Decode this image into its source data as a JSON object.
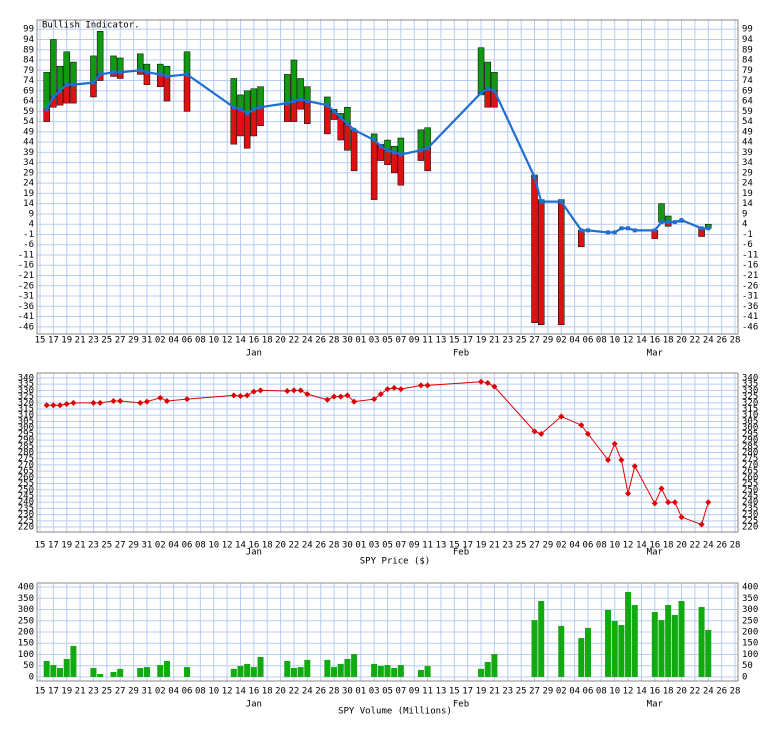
{
  "chart_data": [
    {
      "type": "rangebar",
      "title": "Bullish Indicator.",
      "x": [
        1,
        2,
        3,
        4,
        5,
        8,
        9,
        11,
        12,
        15,
        16,
        18,
        19,
        22,
        29,
        30,
        31,
        32,
        33,
        37,
        38,
        39,
        40,
        43,
        44,
        45,
        46,
        47,
        50,
        51,
        52,
        53,
        54,
        57,
        58,
        66,
        67,
        68,
        74,
        75,
        78,
        81,
        82,
        85,
        86,
        87,
        88,
        89,
        92,
        93,
        94,
        95,
        96,
        99,
        100
      ],
      "values": [
        60,
        66,
        69,
        72,
        72,
        73,
        77,
        78,
        78,
        79,
        78,
        77,
        76,
        77,
        61,
        60,
        58,
        60,
        61,
        63,
        64,
        65,
        64,
        62,
        59,
        56,
        53,
        50,
        45,
        42,
        40,
        39,
        38,
        40,
        41,
        68,
        70,
        69,
        27,
        15,
        15,
        1,
        1,
        0,
        0,
        2,
        2,
        1,
        1,
        5,
        5,
        5,
        6,
        2,
        2
      ],
      "highs": [
        78,
        94,
        81,
        88,
        83,
        86,
        98,
        86,
        85,
        87,
        82,
        82,
        81,
        88,
        75,
        67,
        69,
        70,
        71,
        77,
        84,
        75,
        71,
        66,
        60,
        58,
        61,
        50,
        48,
        43,
        45,
        42,
        46,
        50,
        51,
        90,
        83,
        78,
        28,
        16,
        16,
        1,
        1,
        0,
        0,
        2,
        2,
        1,
        1,
        14,
        8,
        5,
        6,
        2,
        4
      ],
      "lows": [
        54,
        61,
        62,
        63,
        63,
        66,
        74,
        76,
        75,
        77,
        72,
        71,
        64,
        59,
        43,
        47,
        41,
        47,
        52,
        54,
        54,
        60,
        53,
        48,
        55,
        45,
        40,
        30,
        16,
        35,
        33,
        29,
        23,
        35,
        30,
        67,
        61,
        61,
        -44,
        -45,
        -45,
        -7,
        1,
        0,
        0,
        2,
        2,
        1,
        -3,
        5,
        3,
        5,
        5,
        -2,
        2
      ],
      "line_color": "#1f6fd0",
      "up_color": "#119911",
      "down_color": "#dd1111",
      "xlim": [
        0,
        104
      ],
      "xticks": [
        {
          "value": 0,
          "label": "15"
        },
        {
          "value": 2,
          "label": "17"
        },
        {
          "value": 4,
          "label": "19"
        },
        {
          "value": 6,
          "label": "21"
        },
        {
          "value": 8,
          "label": "23"
        },
        {
          "value": 10,
          "label": "25"
        },
        {
          "value": 12,
          "label": "27"
        },
        {
          "value": 14,
          "label": "29"
        },
        {
          "value": 16,
          "label": "31"
        },
        {
          "value": 18,
          "label": "02"
        },
        {
          "value": 20,
          "label": "04"
        },
        {
          "value": 22,
          "label": "06"
        },
        {
          "value": 24,
          "label": "08"
        },
        {
          "value": 26,
          "label": "10"
        },
        {
          "value": 28,
          "label": "12"
        },
        {
          "value": 30,
          "label": "14"
        },
        {
          "value": 32,
          "label": "16"
        },
        {
          "value": 34,
          "label": "18"
        },
        {
          "value": 36,
          "label": "20"
        },
        {
          "value": 38,
          "label": "22"
        },
        {
          "value": 40,
          "label": "24"
        },
        {
          "value": 42,
          "label": "26"
        },
        {
          "value": 44,
          "label": "28"
        },
        {
          "value": 46,
          "label": "30"
        },
        {
          "value": 48,
          "label": "01"
        },
        {
          "value": 50,
          "label": "03"
        },
        {
          "value": 52,
          "label": "05"
        },
        {
          "value": 54,
          "label": "07"
        },
        {
          "value": 56,
          "label": "09"
        },
        {
          "value": 58,
          "label": "11"
        },
        {
          "value": 60,
          "label": "13"
        },
        {
          "value": 62,
          "label": "15"
        },
        {
          "value": 64,
          "label": "17"
        },
        {
          "value": 66,
          "label": "19"
        },
        {
          "value": 68,
          "label": "21"
        },
        {
          "value": 70,
          "label": "23"
        },
        {
          "value": 72,
          "label": "25"
        },
        {
          "value": 74,
          "label": "27"
        },
        {
          "value": 76,
          "label": "29"
        },
        {
          "value": 78,
          "label": "02"
        },
        {
          "value": 80,
          "label": "04"
        },
        {
          "value": 82,
          "label": "06"
        },
        {
          "value": 84,
          "label": "08"
        },
        {
          "value": 86,
          "label": "10"
        },
        {
          "value": 88,
          "label": "12"
        },
        {
          "value": 90,
          "label": "14"
        },
        {
          "value": 92,
          "label": "16"
        },
        {
          "value": 94,
          "label": "18"
        },
        {
          "value": 96,
          "label": "20"
        },
        {
          "value": 98,
          "label": "22"
        },
        {
          "value": 100,
          "label": "24"
        },
        {
          "value": 102,
          "label": "26"
        },
        {
          "value": 104,
          "label": "28"
        }
      ],
      "month_labels": [
        {
          "value": 32,
          "label": "Jan"
        },
        {
          "value": 63,
          "label": "Feb"
        },
        {
          "value": 92,
          "label": "Mar"
        }
      ],
      "ylim": [
        -49.5,
        103.5
      ],
      "yticks": [
        -46,
        -41,
        -36,
        -31,
        -26,
        -21,
        -16,
        -11,
        -6,
        -1,
        4,
        9,
        14,
        19,
        24,
        29,
        34,
        39,
        44,
        49,
        54,
        59,
        64,
        69,
        74,
        79,
        84,
        89,
        94,
        99
      ],
      "grid": true
    },
    {
      "type": "line",
      "title": "SPY Price ($)",
      "x": [
        1,
        2,
        3,
        4,
        5,
        8,
        9,
        11,
        12,
        15,
        16,
        18,
        19,
        22,
        29,
        30,
        31,
        32,
        33,
        37,
        38,
        39,
        40,
        43,
        44,
        45,
        46,
        47,
        50,
        51,
        52,
        53,
        54,
        57,
        58,
        66,
        67,
        68,
        74,
        75,
        78,
        81,
        82,
        85,
        86,
        87,
        88,
        89,
        92,
        93,
        94,
        95,
        96,
        99,
        100
      ],
      "values": [
        318,
        318,
        318,
        319,
        320,
        320,
        320,
        321.5,
        321.5,
        320,
        321,
        324,
        321.5,
        323,
        326,
        325.5,
        326,
        329,
        330,
        329.5,
        330,
        330,
        327,
        322.5,
        325,
        325,
        326,
        321,
        323,
        327,
        331,
        332,
        331,
        334,
        334,
        337,
        336,
        333,
        297,
        295,
        309,
        302,
        295,
        274,
        287,
        274,
        247,
        269,
        239,
        251,
        240,
        240,
        228,
        222,
        240
      ],
      "color": "#e00000",
      "xlim": [
        0,
        104
      ],
      "xticks": [
        {
          "value": 0,
          "label": "15"
        },
        {
          "value": 2,
          "label": "17"
        },
        {
          "value": 4,
          "label": "19"
        },
        {
          "value": 6,
          "label": "21"
        },
        {
          "value": 8,
          "label": "23"
        },
        {
          "value": 10,
          "label": "25"
        },
        {
          "value": 12,
          "label": "27"
        },
        {
          "value": 14,
          "label": "29"
        },
        {
          "value": 16,
          "label": "31"
        },
        {
          "value": 18,
          "label": "02"
        },
        {
          "value": 20,
          "label": "04"
        },
        {
          "value": 22,
          "label": "06"
        },
        {
          "value": 24,
          "label": "08"
        },
        {
          "value": 26,
          "label": "10"
        },
        {
          "value": 28,
          "label": "12"
        },
        {
          "value": 30,
          "label": "14"
        },
        {
          "value": 32,
          "label": "16"
        },
        {
          "value": 34,
          "label": "18"
        },
        {
          "value": 36,
          "label": "20"
        },
        {
          "value": 38,
          "label": "22"
        },
        {
          "value": 40,
          "label": "24"
        },
        {
          "value": 42,
          "label": "26"
        },
        {
          "value": 44,
          "label": "28"
        },
        {
          "value": 46,
          "label": "30"
        },
        {
          "value": 48,
          "label": "01"
        },
        {
          "value": 50,
          "label": "03"
        },
        {
          "value": 52,
          "label": "05"
        },
        {
          "value": 54,
          "label": "07"
        },
        {
          "value": 56,
          "label": "09"
        },
        {
          "value": 58,
          "label": "11"
        },
        {
          "value": 60,
          "label": "13"
        },
        {
          "value": 62,
          "label": "15"
        },
        {
          "value": 64,
          "label": "17"
        },
        {
          "value": 66,
          "label": "19"
        },
        {
          "value": 68,
          "label": "21"
        },
        {
          "value": 70,
          "label": "23"
        },
        {
          "value": 72,
          "label": "25"
        },
        {
          "value": 74,
          "label": "27"
        },
        {
          "value": 76,
          "label": "29"
        },
        {
          "value": 78,
          "label": "02"
        },
        {
          "value": 80,
          "label": "04"
        },
        {
          "value": 82,
          "label": "06"
        },
        {
          "value": 84,
          "label": "08"
        },
        {
          "value": 86,
          "label": "10"
        },
        {
          "value": 88,
          "label": "12"
        },
        {
          "value": 90,
          "label": "14"
        },
        {
          "value": 92,
          "label": "16"
        },
        {
          "value": 94,
          "label": "18"
        },
        {
          "value": 96,
          "label": "20"
        },
        {
          "value": 98,
          "label": "22"
        },
        {
          "value": 100,
          "label": "24"
        },
        {
          "value": 102,
          "label": "26"
        },
        {
          "value": 104,
          "label": "28"
        }
      ],
      "month_labels": [
        {
          "value": 32,
          "label": "Jan"
        },
        {
          "value": 63,
          "label": "Feb"
        },
        {
          "value": 92,
          "label": "Mar"
        }
      ],
      "ylim": [
        216,
        344
      ],
      "yticks": [
        220,
        225,
        230,
        235,
        240,
        245,
        250,
        255,
        260,
        265,
        270,
        275,
        280,
        285,
        290,
        295,
        300,
        305,
        310,
        315,
        320,
        325,
        330,
        335,
        340
      ],
      "grid": true
    },
    {
      "type": "bar",
      "title": "SPY Volume (Millions)",
      "x": [
        1,
        2,
        3,
        4,
        5,
        8,
        9,
        11,
        12,
        15,
        16,
        18,
        19,
        22,
        29,
        30,
        31,
        32,
        33,
        37,
        38,
        39,
        40,
        43,
        44,
        45,
        46,
        47,
        50,
        51,
        52,
        53,
        54,
        57,
        58,
        66,
        67,
        68,
        74,
        75,
        78,
        81,
        82,
        85,
        86,
        87,
        88,
        89,
        92,
        93,
        94,
        95,
        96,
        99,
        100
      ],
      "values": [
        71,
        53,
        40,
        80,
        138,
        40,
        13,
        22,
        36,
        40,
        44,
        53,
        71,
        44,
        36,
        49,
        58,
        44,
        89,
        71,
        40,
        44,
        76,
        76,
        44,
        58,
        80,
        102,
        58,
        49,
        53,
        40,
        53,
        31,
        49,
        36,
        67,
        102,
        253,
        338,
        227,
        173,
        218,
        298,
        249,
        231,
        378,
        320,
        289,
        253,
        320,
        276,
        338,
        311,
        209
      ],
      "color": "#11aa11",
      "xlim": [
        0,
        104
      ],
      "xticks": [
        {
          "value": 0,
          "label": "15"
        },
        {
          "value": 2,
          "label": "17"
        },
        {
          "value": 4,
          "label": "19"
        },
        {
          "value": 6,
          "label": "21"
        },
        {
          "value": 8,
          "label": "23"
        },
        {
          "value": 10,
          "label": "25"
        },
        {
          "value": 12,
          "label": "27"
        },
        {
          "value": 14,
          "label": "29"
        },
        {
          "value": 16,
          "label": "31"
        },
        {
          "value": 18,
          "label": "02"
        },
        {
          "value": 20,
          "label": "04"
        },
        {
          "value": 22,
          "label": "06"
        },
        {
          "value": 24,
          "label": "08"
        },
        {
          "value": 26,
          "label": "10"
        },
        {
          "value": 28,
          "label": "12"
        },
        {
          "value": 30,
          "label": "14"
        },
        {
          "value": 32,
          "label": "16"
        },
        {
          "value": 34,
          "label": "18"
        },
        {
          "value": 36,
          "label": "20"
        },
        {
          "value": 38,
          "label": "22"
        },
        {
          "value": 40,
          "label": "24"
        },
        {
          "value": 42,
          "label": "26"
        },
        {
          "value": 44,
          "label": "28"
        },
        {
          "value": 46,
          "label": "30"
        },
        {
          "value": 48,
          "label": "01"
        },
        {
          "value": 50,
          "label": "03"
        },
        {
          "value": 52,
          "label": "05"
        },
        {
          "value": 54,
          "label": "07"
        },
        {
          "value": 56,
          "label": "09"
        },
        {
          "value": 58,
          "label": "11"
        },
        {
          "value": 60,
          "label": "13"
        },
        {
          "value": 62,
          "label": "15"
        },
        {
          "value": 64,
          "label": "17"
        },
        {
          "value": 66,
          "label": "19"
        },
        {
          "value": 68,
          "label": "21"
        },
        {
          "value": 70,
          "label": "23"
        },
        {
          "value": 72,
          "label": "25"
        },
        {
          "value": 74,
          "label": "27"
        },
        {
          "value": 76,
          "label": "29"
        },
        {
          "value": 78,
          "label": "02"
        },
        {
          "value": 80,
          "label": "04"
        },
        {
          "value": 82,
          "label": "06"
        },
        {
          "value": 84,
          "label": "08"
        },
        {
          "value": 86,
          "label": "10"
        },
        {
          "value": 88,
          "label": "12"
        },
        {
          "value": 90,
          "label": "14"
        },
        {
          "value": 92,
          "label": "16"
        },
        {
          "value": 94,
          "label": "18"
        },
        {
          "value": 96,
          "label": "20"
        },
        {
          "value": 98,
          "label": "22"
        },
        {
          "value": 100,
          "label": "24"
        },
        {
          "value": 102,
          "label": "26"
        },
        {
          "value": 104,
          "label": "28"
        }
      ],
      "month_labels": [
        {
          "value": 32,
          "label": "Jan"
        },
        {
          "value": 63,
          "label": "Feb"
        },
        {
          "value": 92,
          "label": "Mar"
        }
      ],
      "ylim": [
        -18,
        418
      ],
      "yticks": [
        0,
        50,
        100,
        150,
        200,
        250,
        300,
        350,
        400
      ],
      "grid": true
    }
  ]
}
